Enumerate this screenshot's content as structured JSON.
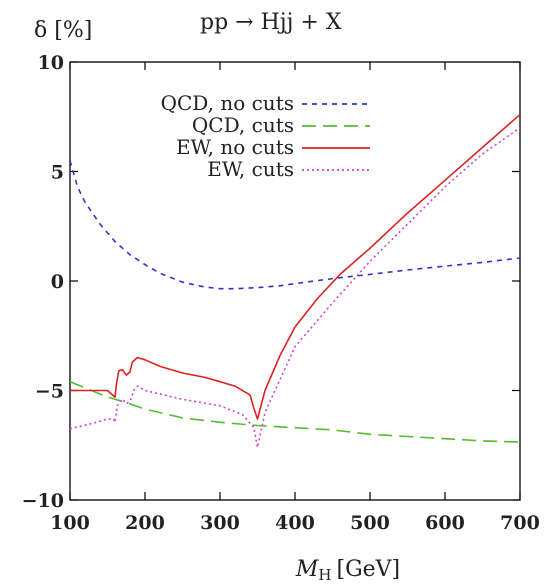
{
  "chart_data": {
    "type": "line",
    "title": "pp → Hjj + X",
    "xlabel_main": "M",
    "xlabel_sub": "H",
    "xlabel_unit": "[GeV]",
    "ylabel": "δ [%]",
    "xlim": [
      100,
      700
    ],
    "ylim": [
      -10,
      10
    ],
    "xticks": [
      100,
      200,
      300,
      400,
      500,
      600,
      700
    ],
    "yticks": [
      -10,
      -5,
      0,
      5,
      10
    ],
    "ytick_labels": [
      "−10",
      "−5",
      "0",
      "5",
      "10"
    ],
    "grid": false,
    "legend_position": "top-left",
    "series": [
      {
        "name": "QCD, no cuts",
        "color": "#3333cc",
        "dash": "5,5",
        "x": [
          100,
          110,
          120,
          140,
          160,
          180,
          200,
          220,
          250,
          280,
          300,
          320,
          350,
          380,
          400,
          430,
          460,
          500,
          550,
          600,
          650,
          700
        ],
        "y": [
          5.5,
          4.3,
          3.6,
          2.6,
          1.8,
          1.2,
          0.75,
          0.35,
          -0.05,
          -0.28,
          -0.35,
          -0.35,
          -0.3,
          -0.22,
          -0.12,
          0.02,
          0.15,
          0.3,
          0.5,
          0.68,
          0.85,
          1.05
        ]
      },
      {
        "name": "QCD, cuts",
        "color": "#55bb33",
        "dash": "14,7",
        "x": [
          100,
          150,
          170,
          200,
          250,
          300,
          350,
          400,
          450,
          500,
          550,
          600,
          650,
          700
        ],
        "y": [
          -4.6,
          -5.3,
          -5.5,
          -5.85,
          -6.25,
          -6.45,
          -6.6,
          -6.7,
          -6.8,
          -7.0,
          -7.1,
          -7.2,
          -7.3,
          -7.35
        ]
      },
      {
        "name": "EW, no cuts",
        "color": "#dd2222",
        "dash": "",
        "x": [
          100,
          130,
          150,
          160,
          162,
          165,
          170,
          175,
          180,
          183,
          190,
          200,
          220,
          250,
          280,
          300,
          320,
          340,
          345,
          350,
          360,
          380,
          400,
          430,
          460,
          500,
          550,
          600,
          650,
          700
        ],
        "y": [
          -5.0,
          -5.0,
          -5.0,
          -5.3,
          -4.7,
          -4.1,
          -4.05,
          -4.3,
          -4.15,
          -3.7,
          -3.5,
          -3.6,
          -3.9,
          -4.2,
          -4.4,
          -4.6,
          -4.8,
          -5.2,
          -5.8,
          -6.3,
          -5.0,
          -3.4,
          -2.1,
          -0.8,
          0.3,
          1.5,
          3.1,
          4.6,
          6.1,
          7.6
        ]
      },
      {
        "name": "EW, cuts",
        "color": "#cc44cc",
        "dash": "2,3",
        "x": [
          100,
          130,
          150,
          158,
          160,
          163,
          166,
          170,
          175,
          180,
          185,
          190,
          200,
          250,
          300,
          330,
          345,
          350,
          355,
          360,
          380,
          400,
          450,
          500,
          550,
          600,
          650,
          700
        ],
        "y": [
          -6.75,
          -6.5,
          -6.3,
          -6.3,
          -6.45,
          -5.7,
          -5.5,
          -5.4,
          -5.6,
          -5.5,
          -5.0,
          -4.8,
          -5.0,
          -5.4,
          -5.7,
          -6.1,
          -6.7,
          -7.6,
          -6.8,
          -6.0,
          -4.5,
          -3.0,
          -1.0,
          0.9,
          2.6,
          4.3,
          5.8,
          7.0
        ]
      }
    ]
  }
}
